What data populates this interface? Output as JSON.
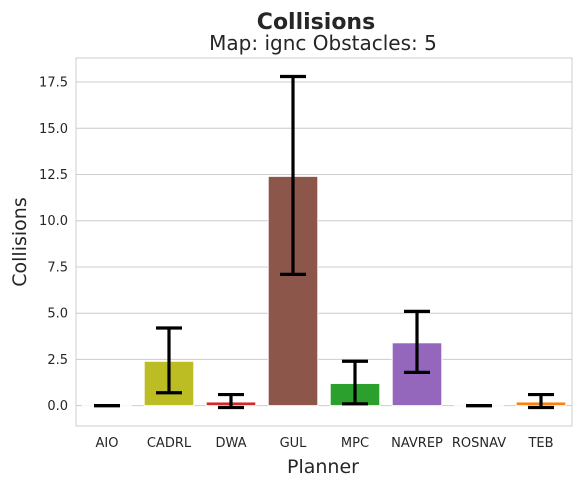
{
  "chart_data": {
    "type": "bar",
    "title": "Collisions",
    "subtitle": "Map: ignc Obstacles: 5",
    "xlabel": "Planner",
    "ylabel": "Collisions",
    "ylim": [
      -1.1,
      18.8
    ],
    "yticks": [
      0.0,
      2.5,
      5.0,
      7.5,
      10.0,
      12.5,
      15.0,
      17.5
    ],
    "ytick_labels": [
      "0.0",
      "2.5",
      "5.0",
      "7.5",
      "10.0",
      "12.5",
      "15.0",
      "17.5"
    ],
    "grid": "y",
    "categories": [
      "AIO",
      "CADRL",
      "DWA",
      "GUL",
      "MPC",
      "NAVREP",
      "ROSNAV",
      "TEB"
    ],
    "values": [
      0.0,
      2.4,
      0.2,
      12.4,
      1.2,
      3.4,
      0.0,
      0.2
    ],
    "error_low": [
      0.0,
      0.7,
      -0.1,
      7.1,
      0.1,
      1.8,
      0.0,
      -0.1
    ],
    "error_high": [
      0.0,
      4.2,
      0.6,
      17.8,
      2.4,
      5.1,
      0.0,
      0.6
    ],
    "colors": [
      "#1f77b4",
      "#bcbd22",
      "#d62728",
      "#8c564b",
      "#2ca02c",
      "#9467bd",
      "#7f7f7f",
      "#ff7f0e"
    ]
  }
}
